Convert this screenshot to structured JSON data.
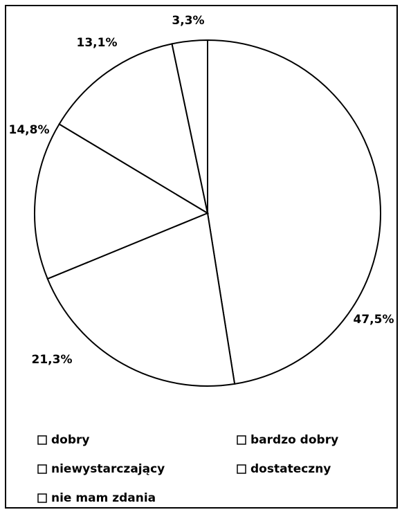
{
  "chart_data": {
    "type": "pie",
    "categories": [
      "dobry",
      "bardzo dobry",
      "niewystarczający",
      "dostateczny",
      "nie mam zdania"
    ],
    "values": [
      47.5,
      21.3,
      14.8,
      13.1,
      3.3
    ],
    "value_labels": [
      "47,5%",
      "21,3%",
      "14,8%",
      "13,1%",
      "3,3%"
    ],
    "colors": [
      "#ffffff",
      "#ffffff",
      "#ffffff",
      "#ffffff",
      "#ffffff"
    ],
    "legend": "bottom"
  }
}
